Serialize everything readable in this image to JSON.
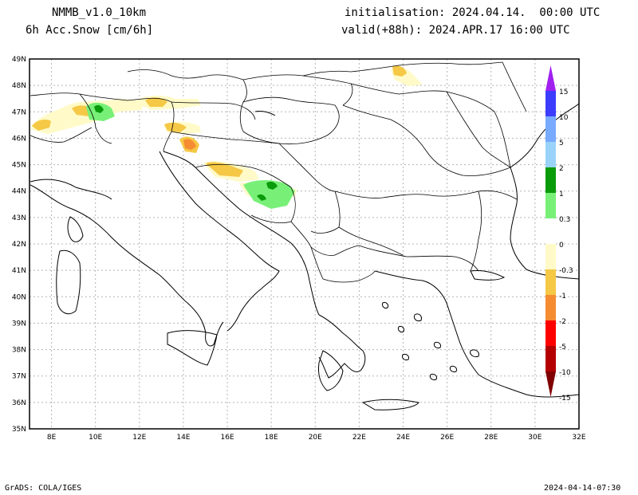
{
  "header": {
    "model": "NMMB_v1.0_10km",
    "field": "6h Acc.Snow [cm/6h]",
    "init": "initialisation: 2024.04.14.  00:00 UTC",
    "valid": "valid(+88h): 2024.APR.17 16:00 UTC"
  },
  "footer": {
    "credit": "GrADS: COLA/IGES",
    "timestamp": "2024-04-14-07:30"
  },
  "map": {
    "lat_labels": [
      "49N",
      "48N",
      "47N",
      "46N",
      "45N",
      "44N",
      "43N",
      "42N",
      "41N",
      "40N",
      "39N",
      "38N",
      "37N",
      "36N",
      "35N"
    ],
    "lon_labels": [
      "8E",
      "10E",
      "12E",
      "14E",
      "16E",
      "18E",
      "20E",
      "22E",
      "24E",
      "26E",
      "28E",
      "30E",
      "32E"
    ]
  },
  "colorbar": {
    "labels": [
      "15",
      "10",
      "5",
      "2",
      "1",
      "0.3",
      "0",
      "-0.3",
      "-1",
      "-2",
      "-5",
      "-10",
      "-15"
    ],
    "colors": [
      "#a020f0",
      "#3c3cff",
      "#78aaff",
      "#9ad3fa",
      "#0a9b0a",
      "#78f078",
      "#ffffff",
      "#fffac8",
      "#f5c846",
      "#f58c32",
      "#ff0000",
      "#b40000",
      "#800000"
    ]
  },
  "colors": {
    "light_green": "#78f078",
    "dark_green": "#0a9b0a",
    "pale_yellow": "#fffac8",
    "yellow": "#f5c846",
    "orange": "#f58c32"
  }
}
